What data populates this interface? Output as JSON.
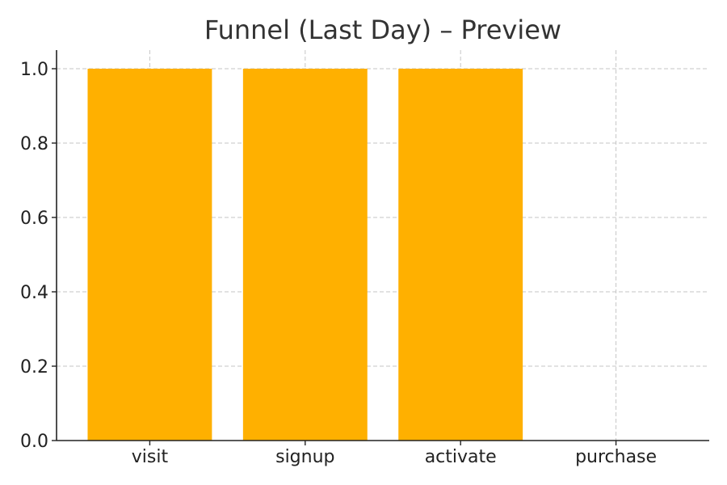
{
  "chart_data": {
    "type": "bar",
    "title": "Funnel (Last Day) – Preview",
    "xlabel": "",
    "ylabel": "",
    "categories": [
      "visit",
      "signup",
      "activate",
      "purchase"
    ],
    "values": [
      1.0,
      1.0,
      1.0,
      0.0
    ],
    "ylim": [
      0,
      1.05
    ],
    "yticks": [
      "0.0",
      "0.2",
      "0.4",
      "0.6",
      "0.8",
      "1.0"
    ],
    "grid": true,
    "legend": "none",
    "colors": {
      "bar": "#FFB000",
      "grid": "#C6C6C6",
      "axis": "#222222",
      "text": "#333333"
    }
  }
}
